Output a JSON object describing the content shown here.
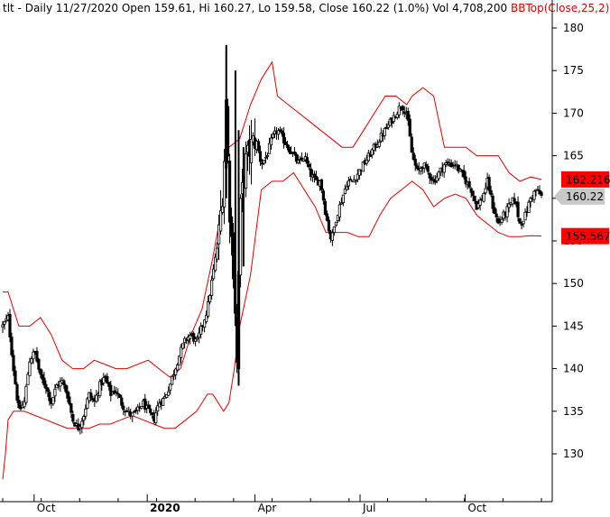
{
  "header": {
    "symbol": "tlt",
    "text": " - Daily 11/27/2020 Open 159.61, Hi 160.27, Lo 159.58, Close 160.22 (1.0%) Vol 4,708,200 ",
    "indicator": "BBTop(Close,25,2)"
  },
  "colors": {
    "background": "#ffffff",
    "price": "#000000",
    "bollinger": "#e00000",
    "upper_tag": "#ff0000",
    "lower_tag": "#ff0000",
    "close_tag": "#c8c8c8"
  },
  "price_tags": {
    "upper": "162.216",
    "close": "160.22",
    "lower": "155.567"
  },
  "chart_data": {
    "type": "candlestick",
    "y_ticks": [
      "130",
      "135",
      "140",
      "145",
      "150",
      "155",
      "160",
      "165",
      "170",
      "175",
      "180"
    ],
    "x_labels": [
      {
        "label": "Oct",
        "t": 0.065
      },
      {
        "label": "2020",
        "t": 0.275,
        "bold": true
      },
      {
        "label": "Apr",
        "t": 0.475
      },
      {
        "label": "Jul",
        "t": 0.67
      },
      {
        "label": "Oct",
        "t": 0.865
      }
    ],
    "ylim": [
      125.5,
      182
    ],
    "close_series": [
      [
        0.0,
        145
      ],
      [
        0.01,
        146
      ],
      [
        0.02,
        140
      ],
      [
        0.03,
        135
      ],
      [
        0.04,
        136
      ],
      [
        0.05,
        141
      ],
      [
        0.06,
        142
      ],
      [
        0.07,
        139
      ],
      [
        0.08,
        138
      ],
      [
        0.09,
        136
      ],
      [
        0.1,
        138
      ],
      [
        0.11,
        138.5
      ],
      [
        0.12,
        137
      ],
      [
        0.13,
        134
      ],
      [
        0.14,
        133
      ],
      [
        0.15,
        134.5
      ],
      [
        0.16,
        137
      ],
      [
        0.17,
        136
      ],
      [
        0.18,
        138
      ],
      [
        0.19,
        139
      ],
      [
        0.2,
        137
      ],
      [
        0.21,
        137.5
      ],
      [
        0.22,
        136
      ],
      [
        0.23,
        135
      ],
      [
        0.24,
        134.5
      ],
      [
        0.25,
        135
      ],
      [
        0.26,
        136
      ],
      [
        0.27,
        135
      ],
      [
        0.28,
        134
      ],
      [
        0.29,
        136
      ],
      [
        0.3,
        136.5
      ],
      [
        0.31,
        138
      ],
      [
        0.32,
        140
      ],
      [
        0.33,
        142
      ],
      [
        0.34,
        143.5
      ],
      [
        0.35,
        144
      ],
      [
        0.36,
        143
      ],
      [
        0.37,
        145
      ],
      [
        0.38,
        147
      ],
      [
        0.39,
        151
      ],
      [
        0.4,
        155
      ],
      [
        0.41,
        162
      ],
      [
        0.415,
        172
      ],
      [
        0.42,
        160
      ],
      [
        0.43,
        150
      ],
      [
        0.435,
        140
      ],
      [
        0.44,
        158
      ],
      [
        0.45,
        164
      ],
      [
        0.46,
        166
      ],
      [
        0.47,
        167
      ],
      [
        0.48,
        164
      ],
      [
        0.49,
        165
      ],
      [
        0.5,
        167
      ],
      [
        0.51,
        168
      ],
      [
        0.52,
        167
      ],
      [
        0.53,
        166
      ],
      [
        0.54,
        165
      ],
      [
        0.55,
        164
      ],
      [
        0.56,
        165
      ],
      [
        0.57,
        163
      ],
      [
        0.58,
        162
      ],
      [
        0.59,
        162
      ],
      [
        0.6,
        158
      ],
      [
        0.61,
        155
      ],
      [
        0.62,
        158
      ],
      [
        0.63,
        160
      ],
      [
        0.64,
        162
      ],
      [
        0.65,
        162
      ],
      [
        0.66,
        163
      ],
      [
        0.67,
        164
      ],
      [
        0.68,
        165
      ],
      [
        0.69,
        166
      ],
      [
        0.7,
        167
      ],
      [
        0.71,
        168
      ],
      [
        0.72,
        169
      ],
      [
        0.73,
        170
      ],
      [
        0.74,
        171
      ],
      [
        0.75,
        170
      ],
      [
        0.76,
        165
      ],
      [
        0.77,
        163
      ],
      [
        0.78,
        164
      ],
      [
        0.79,
        163
      ],
      [
        0.8,
        162
      ],
      [
        0.81,
        163
      ],
      [
        0.82,
        164
      ],
      [
        0.83,
        164
      ],
      [
        0.84,
        164
      ],
      [
        0.85,
        163
      ],
      [
        0.86,
        162
      ],
      [
        0.87,
        161
      ],
      [
        0.88,
        159
      ],
      [
        0.89,
        160
      ],
      [
        0.9,
        162
      ],
      [
        0.91,
        159
      ],
      [
        0.92,
        157
      ],
      [
        0.93,
        158
      ],
      [
        0.94,
        159
      ],
      [
        0.95,
        160
      ],
      [
        0.96,
        157
      ],
      [
        0.97,
        158
      ],
      [
        0.98,
        160
      ],
      [
        0.99,
        161
      ],
      [
        1.0,
        160.22
      ]
    ],
    "upper_band": [
      [
        0.0,
        149
      ],
      [
        0.01,
        149
      ],
      [
        0.02,
        147
      ],
      [
        0.03,
        145
      ],
      [
        0.05,
        145
      ],
      [
        0.07,
        146
      ],
      [
        0.09,
        144
      ],
      [
        0.11,
        141
      ],
      [
        0.13,
        140
      ],
      [
        0.15,
        140
      ],
      [
        0.17,
        141
      ],
      [
        0.19,
        140.5
      ],
      [
        0.21,
        140
      ],
      [
        0.23,
        140
      ],
      [
        0.25,
        140.5
      ],
      [
        0.27,
        141
      ],
      [
        0.29,
        140
      ],
      [
        0.31,
        139
      ],
      [
        0.33,
        140
      ],
      [
        0.35,
        144
      ],
      [
        0.37,
        147
      ],
      [
        0.39,
        153
      ],
      [
        0.41,
        160
      ],
      [
        0.42,
        166
      ],
      [
        0.44,
        167
      ],
      [
        0.46,
        171
      ],
      [
        0.48,
        174
      ],
      [
        0.5,
        176
      ],
      [
        0.51,
        172
      ],
      [
        0.53,
        171
      ],
      [
        0.55,
        170
      ],
      [
        0.57,
        169
      ],
      [
        0.59,
        168
      ],
      [
        0.61,
        167
      ],
      [
        0.63,
        166
      ],
      [
        0.65,
        166
      ],
      [
        0.67,
        168
      ],
      [
        0.69,
        170
      ],
      [
        0.71,
        172
      ],
      [
        0.73,
        172
      ],
      [
        0.75,
        171
      ],
      [
        0.76,
        172
      ],
      [
        0.78,
        173
      ],
      [
        0.8,
        172
      ],
      [
        0.82,
        166
      ],
      [
        0.84,
        166
      ],
      [
        0.86,
        166
      ],
      [
        0.88,
        165
      ],
      [
        0.9,
        165
      ],
      [
        0.92,
        165
      ],
      [
        0.94,
        163
      ],
      [
        0.96,
        162
      ],
      [
        0.98,
        162.5
      ],
      [
        1.0,
        162.216
      ]
    ],
    "lower_band": [
      [
        0.0,
        127
      ],
      [
        0.005,
        130
      ],
      [
        0.01,
        134
      ],
      [
        0.02,
        135
      ],
      [
        0.04,
        135
      ],
      [
        0.06,
        134.5
      ],
      [
        0.08,
        134
      ],
      [
        0.1,
        133.5
      ],
      [
        0.12,
        133
      ],
      [
        0.14,
        133
      ],
      [
        0.16,
        133
      ],
      [
        0.18,
        133.5
      ],
      [
        0.2,
        133.5
      ],
      [
        0.22,
        134
      ],
      [
        0.24,
        134.5
      ],
      [
        0.26,
        134
      ],
      [
        0.28,
        133.5
      ],
      [
        0.3,
        133
      ],
      [
        0.32,
        133
      ],
      [
        0.34,
        134
      ],
      [
        0.36,
        135
      ],
      [
        0.38,
        137
      ],
      [
        0.39,
        137
      ],
      [
        0.4,
        136
      ],
      [
        0.41,
        135
      ],
      [
        0.42,
        136
      ],
      [
        0.43,
        140
      ],
      [
        0.44,
        145
      ],
      [
        0.45,
        148
      ],
      [
        0.46,
        151
      ],
      [
        0.47,
        156
      ],
      [
        0.48,
        161
      ],
      [
        0.5,
        162
      ],
      [
        0.52,
        162
      ],
      [
        0.54,
        163
      ],
      [
        0.56,
        161
      ],
      [
        0.58,
        159
      ],
      [
        0.6,
        156
      ],
      [
        0.62,
        156
      ],
      [
        0.64,
        156
      ],
      [
        0.66,
        155.5
      ],
      [
        0.68,
        155.5
      ],
      [
        0.7,
        158
      ],
      [
        0.72,
        160
      ],
      [
        0.74,
        161
      ],
      [
        0.76,
        162
      ],
      [
        0.78,
        161
      ],
      [
        0.8,
        159
      ],
      [
        0.82,
        160
      ],
      [
        0.84,
        160.5
      ],
      [
        0.86,
        160
      ],
      [
        0.88,
        158
      ],
      [
        0.9,
        157
      ],
      [
        0.92,
        156
      ],
      [
        0.94,
        155.5
      ],
      [
        0.96,
        155.5
      ],
      [
        0.98,
        155.6
      ],
      [
        1.0,
        155.567
      ]
    ]
  }
}
